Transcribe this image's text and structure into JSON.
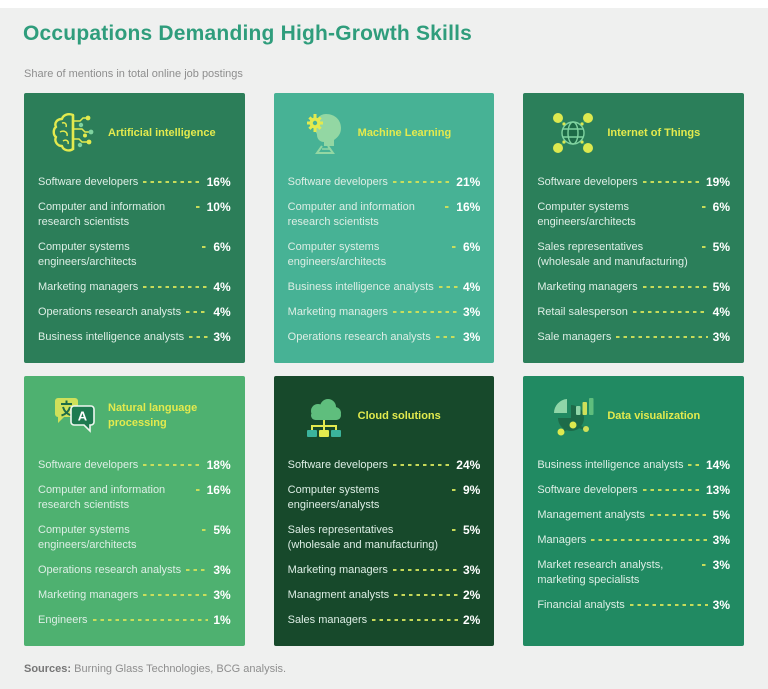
{
  "page": {
    "title": "Occupations Demanding High-Growth Skills",
    "subtitle": "Share of mentions in total online job postings",
    "footer": {
      "label": "Sources:",
      "text": " Burning Glass Technologies, BCG analysis."
    }
  },
  "colors": {
    "title_teal": "#2f9d7c",
    "heading_yellow": "#e3ea4e",
    "dash_yellow_green": "#cfe05a",
    "page_bg": "#eff0ef",
    "card_ai": "#2c7e59",
    "card_ml": "#47b295",
    "card_iot": "#2b7f5a",
    "card_nlp": "#4eb170",
    "card_cloud": "#17492b",
    "card_dataviz": "#218a62"
  },
  "cards": [
    {
      "label": "Artificial intelligence",
      "icon": "brain-circuit-icon",
      "bg": "#2c7e59",
      "items": [
        {
          "name": "Software developers",
          "value": "16%"
        },
        {
          "name": "Computer and information research scientists",
          "value": "10%"
        },
        {
          "name": "Computer systems engineers/architects",
          "value": "6%"
        },
        {
          "name": "Marketing managers",
          "value": "4%"
        },
        {
          "name": "Operations research analysts",
          "value": "4%"
        },
        {
          "name": "Business intelligence analysts",
          "value": "3%"
        }
      ]
    },
    {
      "label": "Machine Learning",
      "icon": "head-gear-icon",
      "bg": "#47b295",
      "items": [
        {
          "name": "Software developers",
          "value": "21%"
        },
        {
          "name": "Computer and information research scientists",
          "value": "16%"
        },
        {
          "name": "Computer systems engineers/architects",
          "value": "6%"
        },
        {
          "name": "Business intelligence analysts",
          "value": "4%"
        },
        {
          "name": "Marketing managers",
          "value": "3%"
        },
        {
          "name": "Operations research analysts",
          "value": "3%"
        }
      ]
    },
    {
      "label": "Internet of Things",
      "icon": "globe-network-icon",
      "bg": "#2b7f5a",
      "items": [
        {
          "name": "Software developers",
          "value": "19%"
        },
        {
          "name": "Computer systems engineers/architects",
          "value": "6%"
        },
        {
          "name": "Sales representatives (wholesale and manufacturing)",
          "value": "5%"
        },
        {
          "name": "Marketing managers",
          "value": "5%"
        },
        {
          "name": "Retail salesperson",
          "value": "4%"
        },
        {
          "name": "Sale managers",
          "value": "3%"
        }
      ]
    },
    {
      "label": "Natural language processing",
      "icon": "translate-bubbles-icon",
      "bg": "#4eb170",
      "items": [
        {
          "name": "Software developers",
          "value": "18%"
        },
        {
          "name": "Computer and information research scientists",
          "value": "16%"
        },
        {
          "name": "Computer systems engineers/architects",
          "value": "5%"
        },
        {
          "name": "Operations research analysts",
          "value": "3%"
        },
        {
          "name": "Marketing managers",
          "value": "3%"
        },
        {
          "name": "Engineers",
          "value": "1%"
        }
      ]
    },
    {
      "label": "Cloud solutions",
      "icon": "cloud-network-icon",
      "bg": "#17492b",
      "items": [
        {
          "name": "Software developers",
          "value": "24%"
        },
        {
          "name": "Computer systems engineers/analysts",
          "value": "9%"
        },
        {
          "name": "Sales representatives (wholesale and manufacturing)",
          "value": "5%"
        },
        {
          "name": "Marketing managers",
          "value": "3%"
        },
        {
          "name": "Managment analysts",
          "value": "2%"
        },
        {
          "name": "Sales managers",
          "value": "2%"
        }
      ]
    },
    {
      "label": "Data visualization",
      "icon": "charts-icon",
      "bg": "#218a62",
      "items": [
        {
          "name": "Business intelligence analysts",
          "value": "14%"
        },
        {
          "name": "Software developers",
          "value": "13%"
        },
        {
          "name": "Management analysts",
          "value": "5%"
        },
        {
          "name": "Managers",
          "value": "3%"
        },
        {
          "name": "Market research analysts, marketing specialists",
          "value": "3%"
        },
        {
          "name": "Financial analysts",
          "value": "3%"
        }
      ]
    }
  ],
  "chart_data": [
    {
      "type": "bar",
      "title": "Artificial intelligence",
      "unit": "%",
      "categories": [
        "Software developers",
        "Computer and information research scientists",
        "Computer systems engineers/architects",
        "Marketing managers",
        "Operations research analysts",
        "Business intelligence analysts"
      ],
      "values": [
        16,
        10,
        6,
        4,
        4,
        3
      ]
    },
    {
      "type": "bar",
      "title": "Machine Learning",
      "unit": "%",
      "categories": [
        "Software developers",
        "Computer and information research scientists",
        "Computer systems engineers/architects",
        "Business intelligence analysts",
        "Marketing managers",
        "Operations research analysts"
      ],
      "values": [
        21,
        16,
        6,
        4,
        3,
        3
      ]
    },
    {
      "type": "bar",
      "title": "Internet of Things",
      "unit": "%",
      "categories": [
        "Software developers",
        "Computer systems engineers/architects",
        "Sales representatives (wholesale and manufacturing)",
        "Marketing managers",
        "Retail salesperson",
        "Sale managers"
      ],
      "values": [
        19,
        6,
        5,
        5,
        4,
        3
      ]
    },
    {
      "type": "bar",
      "title": "Natural language processing",
      "unit": "%",
      "categories": [
        "Software developers",
        "Computer and information research scientists",
        "Computer systems engineers/architects",
        "Operations research analysts",
        "Marketing managers",
        "Engineers"
      ],
      "values": [
        18,
        16,
        5,
        3,
        3,
        1
      ]
    },
    {
      "type": "bar",
      "title": "Cloud solutions",
      "unit": "%",
      "categories": [
        "Software developers",
        "Computer systems engineers/analysts",
        "Sales representatives (wholesale and manufacturing)",
        "Marketing managers",
        "Managment analysts",
        "Sales managers"
      ],
      "values": [
        24,
        9,
        5,
        3,
        2,
        2
      ]
    },
    {
      "type": "bar",
      "title": "Data visualization",
      "unit": "%",
      "categories": [
        "Business intelligence analysts",
        "Software developers",
        "Management analysts",
        "Managers",
        "Market research analysts, marketing specialists",
        "Financial analysts"
      ],
      "values": [
        14,
        13,
        5,
        3,
        3,
        3
      ]
    }
  ]
}
